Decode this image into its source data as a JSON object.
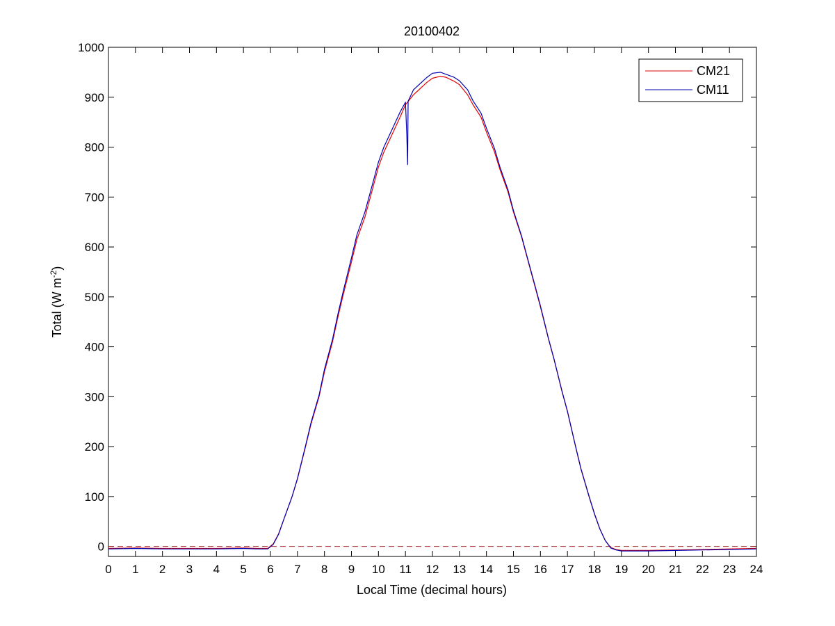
{
  "chart_data": {
    "type": "line",
    "title": "20100402",
    "xlabel": "Local Time (decimal hours)",
    "ylabel": "Total (W m-2)",
    "ylabel_main": "Total (W m",
    "ylabel_sup": "-2",
    "ylabel_close": ")",
    "xlim": [
      0,
      24
    ],
    "ylim": [
      -20,
      1000
    ],
    "xticks": [
      0,
      1,
      2,
      3,
      4,
      5,
      6,
      7,
      8,
      9,
      10,
      11,
      12,
      13,
      14,
      15,
      16,
      17,
      18,
      19,
      20,
      21,
      22,
      23,
      24
    ],
    "yticks": [
      0,
      100,
      200,
      300,
      400,
      500,
      600,
      700,
      800,
      900,
      1000
    ],
    "grid": false,
    "legend_position": "top-right",
    "reference_line": {
      "y": 0,
      "style": "dashed",
      "color": "#a83232"
    },
    "series": [
      {
        "name": "CM21",
        "color": "#e60000",
        "x": [
          0,
          1,
          2,
          3,
          4,
          5,
          5.5,
          5.9,
          6.1,
          6.3,
          6.5,
          6.8,
          7,
          7.3,
          7.5,
          7.8,
          8,
          8.3,
          8.5,
          8.7,
          9,
          9.2,
          9.5,
          9.8,
          10,
          10.2,
          10.5,
          10.8,
          11,
          11.3,
          11.5,
          11.8,
          12,
          12.3,
          12.5,
          12.8,
          13,
          13.3,
          13.5,
          13.8,
          14,
          14.3,
          14.5,
          14.8,
          15,
          15.3,
          15.5,
          15.8,
          16,
          16.3,
          16.5,
          16.8,
          17,
          17.3,
          17.5,
          17.8,
          18,
          18.2,
          18.4,
          18.6,
          18.8,
          19,
          20,
          21,
          22,
          23,
          24
        ],
        "y": [
          -4,
          -3,
          -4,
          -4,
          -4,
          -3,
          -4,
          -4,
          5,
          25,
          55,
          100,
          135,
          200,
          245,
          300,
          350,
          410,
          460,
          505,
          570,
          615,
          660,
          720,
          760,
          790,
          825,
          860,
          885,
          905,
          915,
          930,
          938,
          942,
          940,
          932,
          925,
          905,
          885,
          860,
          830,
          790,
          755,
          710,
          670,
          620,
          580,
          520,
          480,
          415,
          375,
          310,
          270,
          200,
          155,
          100,
          65,
          35,
          12,
          -2,
          -6,
          -8,
          -8,
          -7,
          -6,
          -5,
          -4
        ]
      },
      {
        "name": "CM11",
        "color": "#0000b3",
        "x": [
          0,
          1,
          2,
          3,
          4,
          5,
          5.5,
          5.9,
          6.1,
          6.3,
          6.5,
          6.8,
          7,
          7.3,
          7.5,
          7.8,
          8,
          8.3,
          8.5,
          8.7,
          9,
          9.2,
          9.5,
          9.8,
          10,
          10.2,
          10.5,
          10.8,
          11,
          11.05,
          11.08,
          11.1,
          11.3,
          11.5,
          11.8,
          12,
          12.3,
          12.5,
          12.8,
          13,
          13.3,
          13.5,
          13.8,
          14,
          14.3,
          14.5,
          14.8,
          15,
          15.3,
          15.5,
          15.8,
          16,
          16.3,
          16.5,
          16.8,
          17,
          17.3,
          17.5,
          17.8,
          18,
          18.2,
          18.4,
          18.6,
          18.8,
          19,
          20,
          21,
          22,
          23,
          24
        ],
        "y": [
          -5,
          -4,
          -5,
          -5,
          -5,
          -4,
          -5,
          -5,
          4,
          24,
          55,
          100,
          136,
          202,
          248,
          303,
          355,
          415,
          466,
          512,
          578,
          624,
          670,
          730,
          770,
          800,
          835,
          870,
          890,
          825,
          765,
          892,
          915,
          925,
          940,
          948,
          950,
          946,
          940,
          933,
          915,
          893,
          868,
          838,
          797,
          760,
          714,
          673,
          622,
          582,
          522,
          482,
          416,
          376,
          311,
          271,
          201,
          156,
          101,
          66,
          35,
          12,
          -3,
          -7,
          -9,
          -9,
          -8,
          -7,
          -6,
          -5
        ]
      }
    ]
  }
}
